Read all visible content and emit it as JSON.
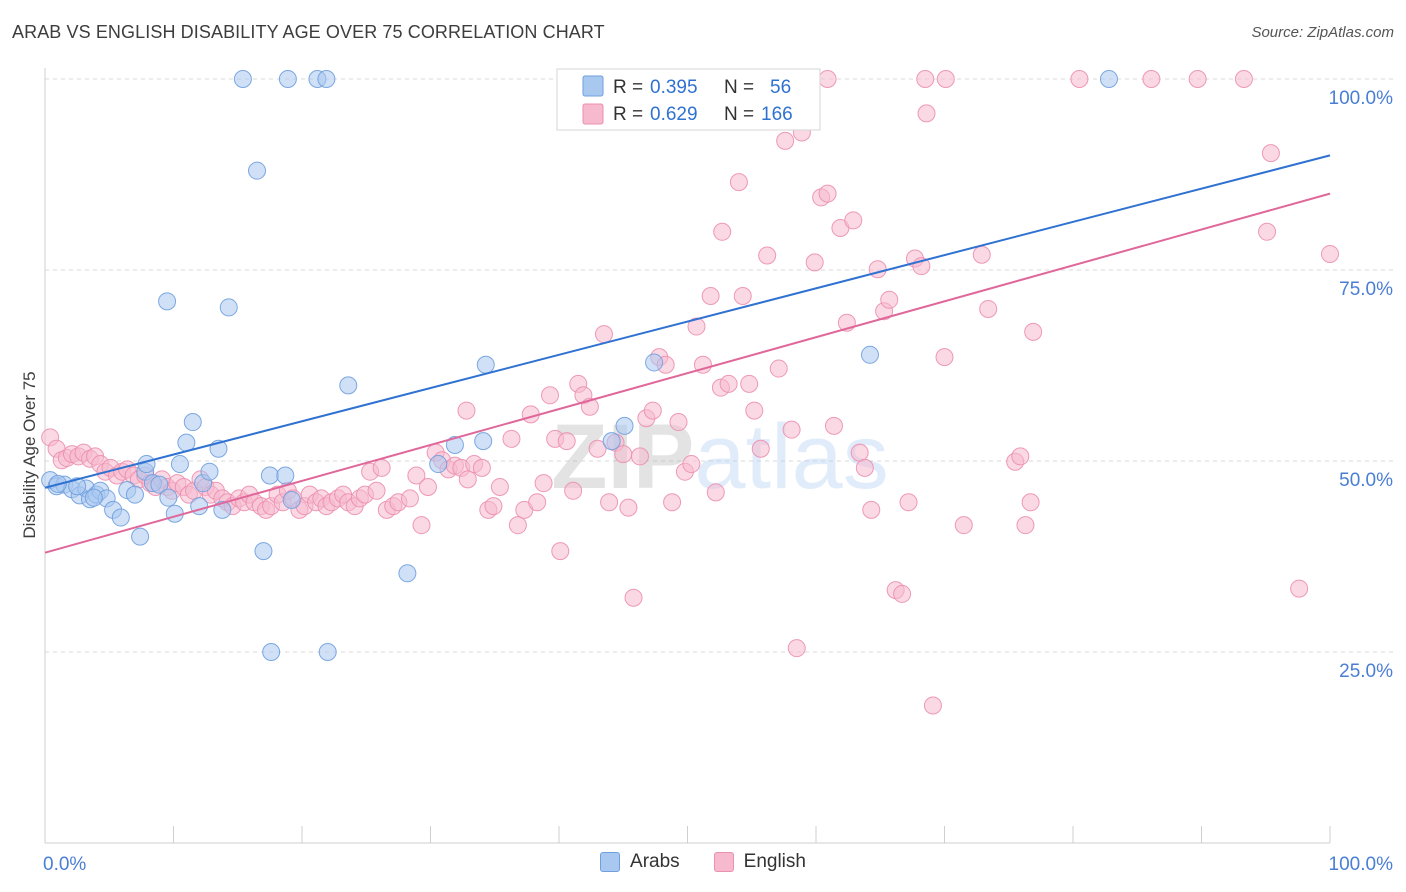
{
  "title": "ARAB VS ENGLISH DISABILITY AGE OVER 75 CORRELATION CHART",
  "source": "Source: ZipAtlas.com",
  "watermark": "ZIPatlas",
  "colors": {
    "arab_fill": "#a9c8f0",
    "arab_stroke": "#6f9fde",
    "arab_line": "#2f72d2",
    "english_fill": "#f6b9cd",
    "english_stroke": "#ec8fb0",
    "english_line": "#e0679a",
    "tick_label": "#4a7ed4",
    "grid": "#d9d9d9"
  },
  "legend_box": {
    "arab": {
      "r_label": "R = ",
      "r_value": "0.395",
      "n_label": "N = ",
      "n_value": "56"
    },
    "english": {
      "r_label": "R = ",
      "r_value": "0.629",
      "n_label": "N = ",
      "n_value": "166"
    }
  },
  "chart_data": {
    "type": "scatter",
    "title": "ARAB VS ENGLISH DISABILITY AGE OVER 75 CORRELATION CHART",
    "xlabel": "",
    "ylabel": "Disability Age Over 75",
    "xlim": [
      0,
      100
    ],
    "ylim": [
      0,
      100
    ],
    "x_tick_labels": [
      "0.0%",
      "100.0%"
    ],
    "y_ticks": [
      25,
      50,
      75,
      100
    ],
    "y_tick_labels": [
      "25.0%",
      "50.0%",
      "75.0%",
      "100.0%"
    ],
    "grid": true,
    "legend_position": "bottom",
    "series": [
      {
        "name": "Arabs",
        "trend": {
          "x": [
            0,
            100
          ],
          "y": [
            46.5,
            90.0
          ]
        },
        "points": [
          [
            0.4,
            47.5
          ],
          [
            0.9,
            46.7
          ],
          [
            1.5,
            46.9
          ],
          [
            2.1,
            46.3
          ],
          [
            2.7,
            45.5
          ],
          [
            3.2,
            46.4
          ],
          [
            3.5,
            45.0
          ],
          [
            4.0,
            45.6
          ],
          [
            4.3,
            46.1
          ],
          [
            4.8,
            45.1
          ],
          [
            5.3,
            43.6
          ],
          [
            5.9,
            42.6
          ],
          [
            6.4,
            46.2
          ],
          [
            7.0,
            45.6
          ],
          [
            7.4,
            40.1
          ],
          [
            7.8,
            48.6
          ],
          [
            7.9,
            49.6
          ],
          [
            8.4,
            47.1
          ],
          [
            8.9,
            46.9
          ],
          [
            9.6,
            45.2
          ],
          [
            10.1,
            43.1
          ],
          [
            10.5,
            49.6
          ],
          [
            11.0,
            52.4
          ],
          [
            11.5,
            55.1
          ],
          [
            12.0,
            44.1
          ],
          [
            12.3,
            47.1
          ],
          [
            12.8,
            48.6
          ],
          [
            13.5,
            51.6
          ],
          [
            13.8,
            43.6
          ],
          [
            9.5,
            70.9
          ],
          [
            14.3,
            70.1
          ],
          [
            15.4,
            100.0
          ],
          [
            16.5,
            88.0
          ],
          [
            17.0,
            38.2
          ],
          [
            17.5,
            48.1
          ],
          [
            17.6,
            25.0
          ],
          [
            18.7,
            48.1
          ],
          [
            18.9,
            100.0
          ],
          [
            19.2,
            44.9
          ],
          [
            21.2,
            100.0
          ],
          [
            21.9,
            100.0
          ],
          [
            22.0,
            25.0
          ],
          [
            23.6,
            59.9
          ],
          [
            28.2,
            35.3
          ],
          [
            30.6,
            49.6
          ],
          [
            31.9,
            52.1
          ],
          [
            34.1,
            52.6
          ],
          [
            34.3,
            62.6
          ],
          [
            44.1,
            52.6
          ],
          [
            45.1,
            54.6
          ],
          [
            47.4,
            62.9
          ],
          [
            64.2,
            63.9
          ],
          [
            82.8,
            100.0
          ],
          [
            1.0,
            47.0
          ],
          [
            2.5,
            46.7
          ],
          [
            3.8,
            45.2
          ]
        ]
      },
      {
        "name": "English",
        "trend": {
          "x": [
            0,
            100
          ],
          "y": [
            38.0,
            85.0
          ]
        },
        "points": [
          [
            0.4,
            53.1
          ],
          [
            0.9,
            51.6
          ],
          [
            1.3,
            50.1
          ],
          [
            1.7,
            50.4
          ],
          [
            2.1,
            50.9
          ],
          [
            2.6,
            50.6
          ],
          [
            3.0,
            51.1
          ],
          [
            3.5,
            50.3
          ],
          [
            3.9,
            50.6
          ],
          [
            4.3,
            49.6
          ],
          [
            4.7,
            48.6
          ],
          [
            5.1,
            49.1
          ],
          [
            5.6,
            48.1
          ],
          [
            6.0,
            48.6
          ],
          [
            6.4,
            48.9
          ],
          [
            6.9,
            48.1
          ],
          [
            7.3,
            47.6
          ],
          [
            7.8,
            48.1
          ],
          [
            8.2,
            47.1
          ],
          [
            8.6,
            46.6
          ],
          [
            9.1,
            47.6
          ],
          [
            9.5,
            46.6
          ],
          [
            9.9,
            46.1
          ],
          [
            10.3,
            47.1
          ],
          [
            10.8,
            46.6
          ],
          [
            11.2,
            45.6
          ],
          [
            11.6,
            46.1
          ],
          [
            12.1,
            47.6
          ],
          [
            12.5,
            46.6
          ],
          [
            12.9,
            45.6
          ],
          [
            13.3,
            46.1
          ],
          [
            13.8,
            45.1
          ],
          [
            14.2,
            44.6
          ],
          [
            14.6,
            44.1
          ],
          [
            15.1,
            45.1
          ],
          [
            15.5,
            44.6
          ],
          [
            15.9,
            45.6
          ],
          [
            16.3,
            44.6
          ],
          [
            16.8,
            44.1
          ],
          [
            17.2,
            43.6
          ],
          [
            17.6,
            44.1
          ],
          [
            18.1,
            45.6
          ],
          [
            18.5,
            44.6
          ],
          [
            18.9,
            46.1
          ],
          [
            19.3,
            45.1
          ],
          [
            19.8,
            43.6
          ],
          [
            20.2,
            44.1
          ],
          [
            20.6,
            45.6
          ],
          [
            21.1,
            44.6
          ],
          [
            21.5,
            45.1
          ],
          [
            21.9,
            44.1
          ],
          [
            22.3,
            44.6
          ],
          [
            22.8,
            45.1
          ],
          [
            23.2,
            45.6
          ],
          [
            23.6,
            44.6
          ],
          [
            24.1,
            44.1
          ],
          [
            24.5,
            45.1
          ],
          [
            24.9,
            45.6
          ],
          [
            25.3,
            48.6
          ],
          [
            25.8,
            46.1
          ],
          [
            26.2,
            49.1
          ],
          [
            26.6,
            43.6
          ],
          [
            27.1,
            44.1
          ],
          [
            27.5,
            44.6
          ],
          [
            28.4,
            45.1
          ],
          [
            28.9,
            48.1
          ],
          [
            29.3,
            41.6
          ],
          [
            29.8,
            46.6
          ],
          [
            30.4,
            51.1
          ],
          [
            30.9,
            50.1
          ],
          [
            31.4,
            48.9
          ],
          [
            31.9,
            49.4
          ],
          [
            32.4,
            49.1
          ],
          [
            32.8,
            56.6
          ],
          [
            32.9,
            47.6
          ],
          [
            33.4,
            49.6
          ],
          [
            34.0,
            49.1
          ],
          [
            34.5,
            43.6
          ],
          [
            34.9,
            44.1
          ],
          [
            35.4,
            46.6
          ],
          [
            36.3,
            52.9
          ],
          [
            36.8,
            41.6
          ],
          [
            37.3,
            43.6
          ],
          [
            37.8,
            56.1
          ],
          [
            38.3,
            44.6
          ],
          [
            38.8,
            47.1
          ],
          [
            39.3,
            58.6
          ],
          [
            39.7,
            52.9
          ],
          [
            40.1,
            38.2
          ],
          [
            40.6,
            52.6
          ],
          [
            41.1,
            46.1
          ],
          [
            41.5,
            60.1
          ],
          [
            41.9,
            58.6
          ],
          [
            42.4,
            57.1
          ],
          [
            43.0,
            51.6
          ],
          [
            43.5,
            66.6
          ],
          [
            43.9,
            44.6
          ],
          [
            44.4,
            52.4
          ],
          [
            45.0,
            50.9
          ],
          [
            45.4,
            43.9
          ],
          [
            45.8,
            32.1
          ],
          [
            46.3,
            50.6
          ],
          [
            46.8,
            55.6
          ],
          [
            47.3,
            56.6
          ],
          [
            47.8,
            63.6
          ],
          [
            48.3,
            62.6
          ],
          [
            48.8,
            44.6
          ],
          [
            49.3,
            55.1
          ],
          [
            49.8,
            48.6
          ],
          [
            50.3,
            49.6
          ],
          [
            50.7,
            67.6
          ],
          [
            51.2,
            62.6
          ],
          [
            51.8,
            71.6
          ],
          [
            52.2,
            45.9
          ],
          [
            52.6,
            59.6
          ],
          [
            52.7,
            80.0
          ],
          [
            53.2,
            60.1
          ],
          [
            54.0,
            86.5
          ],
          [
            54.3,
            71.6
          ],
          [
            54.8,
            60.1
          ],
          [
            55.2,
            56.6
          ],
          [
            55.7,
            51.6
          ],
          [
            56.2,
            76.9
          ],
          [
            57.1,
            62.1
          ],
          [
            57.6,
            91.9
          ],
          [
            58.1,
            54.1
          ],
          [
            58.5,
            25.5
          ],
          [
            58.9,
            93.0
          ],
          [
            59.9,
            76.0
          ],
          [
            60.4,
            84.5
          ],
          [
            60.9,
            85.0
          ],
          [
            61.4,
            54.6
          ],
          [
            61.9,
            80.5
          ],
          [
            62.4,
            68.1
          ],
          [
            62.9,
            81.5
          ],
          [
            63.4,
            51.1
          ],
          [
            63.8,
            49.1
          ],
          [
            64.3,
            43.6
          ],
          [
            64.8,
            75.1
          ],
          [
            65.3,
            69.6
          ],
          [
            65.7,
            71.1
          ],
          [
            66.2,
            33.1
          ],
          [
            66.7,
            32.6
          ],
          [
            67.2,
            44.6
          ],
          [
            67.7,
            76.5
          ],
          [
            68.2,
            75.5
          ],
          [
            68.6,
            95.5
          ],
          [
            69.1,
            18.0
          ],
          [
            70.0,
            63.6
          ],
          [
            71.5,
            41.6
          ],
          [
            72.9,
            77.0
          ],
          [
            73.4,
            69.9
          ],
          [
            75.5,
            49.9
          ],
          [
            75.9,
            50.6
          ],
          [
            76.3,
            41.6
          ],
          [
            76.7,
            44.6
          ],
          [
            76.9,
            66.9
          ],
          [
            89.7,
            100.0
          ],
          [
            93.3,
            100.0
          ],
          [
            95.1,
            80.0
          ],
          [
            95.4,
            90.3
          ],
          [
            97.6,
            33.3
          ],
          [
            100.0,
            77.1
          ],
          [
            60.9,
            100.0
          ],
          [
            68.5,
            100.0
          ],
          [
            70.1,
            100.0
          ],
          [
            80.5,
            100.0
          ],
          [
            86.1,
            100.0
          ]
        ]
      }
    ]
  }
}
